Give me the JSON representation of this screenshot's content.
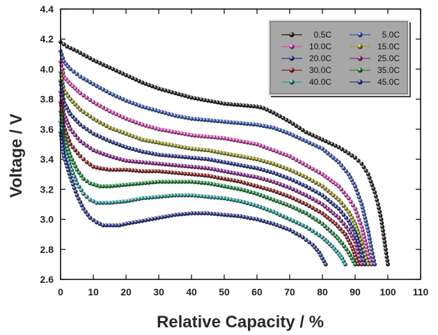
{
  "chart_data": {
    "type": "line",
    "xlabel": "Relative Capacity / %",
    "ylabel": "Voltage / V",
    "xlim": [
      0,
      110
    ],
    "ylim": [
      2.6,
      4.4
    ],
    "xticks": [
      0,
      10,
      20,
      30,
      40,
      50,
      60,
      70,
      80,
      90,
      100,
      110
    ],
    "yticks": [
      2.6,
      2.8,
      3.0,
      3.2,
      3.4,
      3.6,
      3.8,
      4.0,
      4.2,
      4.4
    ],
    "ytick_labels": [
      "2.6",
      "2.8",
      "3.0",
      "3.2",
      "3.4",
      "3.6",
      "3.8",
      "4.0",
      "4.2",
      "4.4"
    ],
    "grid": false,
    "legend_position": "top-right",
    "marker": "filled sphere",
    "series": [
      {
        "name": "0.5C",
        "color": "#1a1a1a",
        "x": [
          0,
          2,
          5,
          10,
          15,
          20,
          25,
          30,
          35,
          40,
          45,
          50,
          55,
          60,
          62,
          65,
          70,
          75,
          80,
          85,
          88,
          90,
          92,
          94,
          96,
          97,
          98,
          99,
          100
        ],
        "y": [
          4.18,
          4.15,
          4.12,
          4.06,
          4.01,
          3.96,
          3.91,
          3.87,
          3.84,
          3.81,
          3.79,
          3.77,
          3.76,
          3.75,
          3.74,
          3.71,
          3.65,
          3.58,
          3.53,
          3.48,
          3.44,
          3.41,
          3.37,
          3.3,
          3.18,
          3.1,
          3.0,
          2.85,
          2.7
        ]
      },
      {
        "name": "5.0C",
        "color": "#3858b8",
        "x": [
          0,
          1,
          3,
          6,
          10,
          15,
          20,
          25,
          30,
          35,
          40,
          45,
          50,
          55,
          60,
          65,
          70,
          75,
          80,
          85,
          88,
          90,
          92,
          94,
          95,
          96
        ],
        "y": [
          4.12,
          4.05,
          4.0,
          3.95,
          3.9,
          3.84,
          3.79,
          3.75,
          3.72,
          3.69,
          3.67,
          3.66,
          3.65,
          3.64,
          3.63,
          3.61,
          3.57,
          3.52,
          3.47,
          3.38,
          3.3,
          3.22,
          3.1,
          2.92,
          2.8,
          2.7
        ]
      },
      {
        "name": "10.0C",
        "color": "#d84ab8",
        "x": [
          0,
          1,
          3,
          6,
          10,
          15,
          20,
          25,
          30,
          35,
          40,
          45,
          50,
          55,
          60,
          65,
          70,
          75,
          80,
          85,
          88,
          90,
          92,
          93,
          94,
          95
        ],
        "y": [
          4.05,
          3.95,
          3.9,
          3.84,
          3.78,
          3.72,
          3.67,
          3.63,
          3.6,
          3.58,
          3.56,
          3.55,
          3.54,
          3.52,
          3.5,
          3.46,
          3.42,
          3.36,
          3.3,
          3.22,
          3.14,
          3.07,
          2.95,
          2.86,
          2.77,
          2.7
        ]
      },
      {
        "name": "15.0C",
        "color": "#9a9a2a",
        "x": [
          0,
          1,
          3,
          6,
          10,
          15,
          20,
          25,
          30,
          35,
          40,
          45,
          50,
          55,
          60,
          65,
          70,
          75,
          80,
          85,
          88,
          90,
          91,
          92,
          93,
          94
        ],
        "y": [
          3.98,
          3.86,
          3.8,
          3.73,
          3.67,
          3.61,
          3.57,
          3.53,
          3.51,
          3.49,
          3.47,
          3.46,
          3.44,
          3.42,
          3.4,
          3.37,
          3.33,
          3.28,
          3.22,
          3.13,
          3.05,
          2.97,
          2.91,
          2.84,
          2.76,
          2.7
        ]
      },
      {
        "name": "20.0C",
        "color": "#283890",
        "x": [
          0,
          1,
          3,
          6,
          10,
          15,
          20,
          25,
          30,
          35,
          40,
          45,
          50,
          55,
          60,
          65,
          70,
          75,
          80,
          85,
          88,
          90,
          91,
          92,
          93
        ],
        "y": [
          3.92,
          3.78,
          3.7,
          3.63,
          3.57,
          3.52,
          3.48,
          3.45,
          3.43,
          3.42,
          3.41,
          3.4,
          3.38,
          3.36,
          3.34,
          3.31,
          3.27,
          3.22,
          3.16,
          3.07,
          2.99,
          2.91,
          2.85,
          2.78,
          2.7
        ]
      },
      {
        "name": "25.0C",
        "color": "#902a90",
        "x": [
          0,
          1,
          3,
          6,
          10,
          15,
          20,
          25,
          30,
          35,
          40,
          45,
          50,
          55,
          60,
          65,
          70,
          75,
          80,
          85,
          88,
          90,
          91,
          92
        ],
        "y": [
          3.85,
          3.7,
          3.6,
          3.52,
          3.46,
          3.42,
          3.39,
          3.38,
          3.37,
          3.36,
          3.35,
          3.34,
          3.32,
          3.3,
          3.28,
          3.25,
          3.21,
          3.16,
          3.1,
          3.01,
          2.93,
          2.85,
          2.78,
          2.7
        ]
      },
      {
        "name": "30.0C",
        "color": "#8c2020",
        "x": [
          0,
          1,
          3,
          6,
          8,
          10,
          12,
          15,
          20,
          25,
          30,
          35,
          40,
          45,
          50,
          55,
          60,
          65,
          70,
          75,
          80,
          84,
          87,
          89,
          90,
          91
        ],
        "y": [
          3.78,
          3.62,
          3.5,
          3.42,
          3.38,
          3.35,
          3.34,
          3.33,
          3.33,
          3.32,
          3.32,
          3.31,
          3.3,
          3.29,
          3.27,
          3.25,
          3.22,
          3.19,
          3.15,
          3.1,
          3.04,
          2.97,
          2.9,
          2.82,
          2.76,
          2.7
        ]
      },
      {
        "name": "35.0C",
        "color": "#1e8a3c",
        "x": [
          0,
          1,
          3,
          5,
          7,
          9,
          12,
          15,
          20,
          25,
          30,
          35,
          40,
          45,
          50,
          55,
          60,
          65,
          70,
          75,
          80,
          84,
          86,
          88,
          89,
          90
        ],
        "y": [
          3.72,
          3.55,
          3.42,
          3.33,
          3.27,
          3.24,
          3.22,
          3.22,
          3.23,
          3.24,
          3.25,
          3.25,
          3.25,
          3.24,
          3.22,
          3.2,
          3.17,
          3.13,
          3.09,
          3.04,
          2.97,
          2.89,
          2.84,
          2.78,
          2.74,
          2.7
        ]
      },
      {
        "name": "40.0C",
        "color": "#2a9a9a",
        "x": [
          0,
          1,
          3,
          5,
          7,
          9,
          11,
          13,
          15,
          20,
          25,
          30,
          35,
          40,
          45,
          50,
          55,
          60,
          65,
          70,
          75,
          80,
          83,
          85,
          86,
          87
        ],
        "y": [
          3.65,
          3.48,
          3.35,
          3.24,
          3.17,
          3.13,
          3.11,
          3.11,
          3.11,
          3.12,
          3.14,
          3.15,
          3.16,
          3.16,
          3.15,
          3.14,
          3.12,
          3.09,
          3.05,
          3.0,
          2.95,
          2.88,
          2.82,
          2.77,
          2.74,
          2.7
        ]
      },
      {
        "name": "45.0C",
        "color": "#283890",
        "x": [
          0,
          1,
          3,
          5,
          7,
          9,
          11,
          13,
          15,
          18,
          20,
          25,
          30,
          35,
          40,
          45,
          50,
          55,
          60,
          65,
          70,
          74,
          77,
          79,
          80,
          81
        ],
        "y": [
          3.58,
          3.42,
          3.28,
          3.16,
          3.07,
          3.01,
          2.98,
          2.96,
          2.96,
          2.96,
          2.97,
          2.99,
          3.01,
          3.03,
          3.04,
          3.04,
          3.03,
          3.02,
          3.0,
          2.97,
          2.93,
          2.88,
          2.83,
          2.78,
          2.74,
          2.7
        ]
      }
    ]
  }
}
